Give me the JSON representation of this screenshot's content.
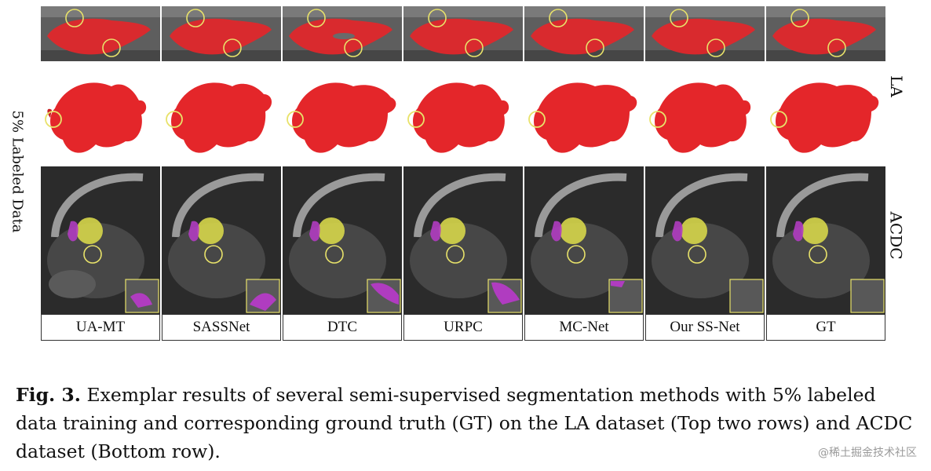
{
  "figure": {
    "methods": [
      "UA-MT",
      "SASSNet",
      "DTC",
      "URPC",
      "MC-Net",
      "Our SS-Net",
      "GT"
    ],
    "left_label": "5% Labeled Data",
    "row_labels": {
      "la": "LA",
      "acdc": "ACDC"
    }
  },
  "caption": {
    "label": "Fig. 3.",
    "text": "Exemplar results of several semi-supervised segmentation methods with 5% labeled data training and corresponding ground truth (GT) on the LA dataset (Top two rows) and ACDC dataset (Bottom row)."
  },
  "watermark": "@稀土掘金技术社区",
  "colors": {
    "segmentation_red": "#e4262a",
    "highlight_yellow": "#e8e26a",
    "myocardium_magenta": "#b03cc0",
    "ventricle_yellow": "#d6d64a"
  }
}
